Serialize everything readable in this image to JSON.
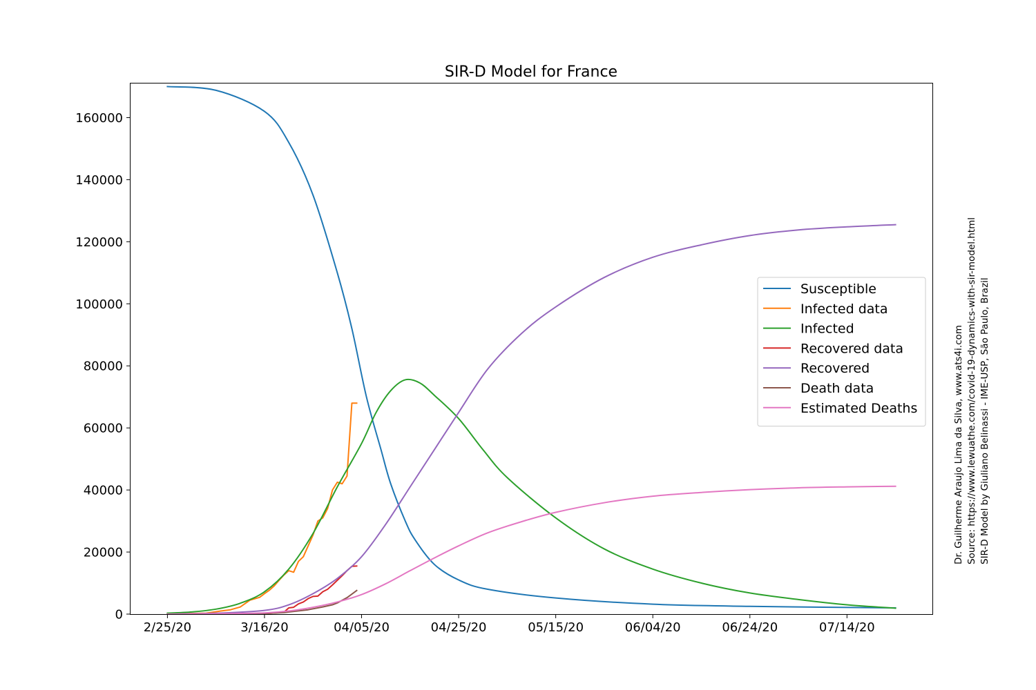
{
  "chart_data": {
    "type": "line",
    "title": "SIR-D Model for France",
    "xlabel": "",
    "ylabel": "",
    "x_start_date": "2020-02-25",
    "x_end_date": "2020-07-24",
    "ylim": [
      0,
      171000
    ],
    "y_ticks": [
      0,
      20000,
      40000,
      60000,
      80000,
      100000,
      120000,
      140000,
      160000
    ],
    "y_tick_labels": [
      "0",
      "20000",
      "40000",
      "60000",
      "80000",
      "100000",
      "120000",
      "140000",
      "160000"
    ],
    "x_tick_labels": [
      "2/25/20",
      "3/16/20",
      "04/05/20",
      "04/25/20",
      "05/15/20",
      "06/04/20",
      "06/24/20",
      "07/14/20"
    ],
    "legend_position": "center-right",
    "grid": false,
    "series": [
      {
        "name": "Susceptible",
        "color": "#1f77b4",
        "x": [
          "2020-02-25",
          "2020-03-06",
          "2020-03-16",
          "2020-03-21",
          "2020-03-26",
          "2020-03-31",
          "2020-04-03",
          "2020-04-06",
          "2020-04-09",
          "2020-04-11",
          "2020-04-14",
          "2020-04-16",
          "2020-04-20",
          "2020-04-25",
          "2020-05-01",
          "2020-05-15",
          "2020-06-04",
          "2020-06-24",
          "2020-07-24"
        ],
        "y": [
          170000,
          168800,
          162000,
          152000,
          135000,
          110000,
          92000,
          70000,
          53000,
          42000,
          30000,
          24000,
          16000,
          11000,
          8000,
          5200,
          3200,
          2500,
          2000
        ]
      },
      {
        "name": "Infected data",
        "color": "#ff7f0e",
        "x": [
          "2020-02-25",
          "2020-03-04",
          "2020-03-07",
          "2020-03-09",
          "2020-03-11",
          "2020-03-13",
          "2020-03-15",
          "2020-03-16",
          "2020-03-17",
          "2020-03-18",
          "2020-03-19",
          "2020-03-20",
          "2020-03-21",
          "2020-03-22",
          "2020-03-23",
          "2020-03-24",
          "2020-03-25",
          "2020-03-26",
          "2020-03-27",
          "2020-03-28",
          "2020-03-29",
          "2020-03-30",
          "2020-03-31",
          "2020-04-01",
          "2020-04-02",
          "2020-04-03",
          "2020-04-04"
        ],
        "y": [
          12,
          300,
          1000,
          1400,
          2300,
          4500,
          5400,
          6600,
          7700,
          9100,
          10900,
          12600,
          14000,
          13500,
          17000,
          18500,
          22000,
          25500,
          30000,
          31000,
          34000,
          40000,
          42500,
          42000,
          44500,
          68000,
          68000
        ]
      },
      {
        "name": "Infected",
        "color": "#2ca02c",
        "x": [
          "2020-02-25",
          "2020-03-01",
          "2020-03-06",
          "2020-03-11",
          "2020-03-16",
          "2020-03-21",
          "2020-03-26",
          "2020-03-31",
          "2020-04-05",
          "2020-04-08",
          "2020-04-11",
          "2020-04-14",
          "2020-04-17",
          "2020-04-20",
          "2020-04-25",
          "2020-04-30",
          "2020-05-05",
          "2020-05-15",
          "2020-05-25",
          "2020-06-04",
          "2020-06-14",
          "2020-06-24",
          "2020-07-04",
          "2020-07-14",
          "2020-07-24"
        ],
        "y": [
          300,
          700,
          1600,
          3500,
          7200,
          14500,
          26000,
          41000,
          55000,
          65000,
          72000,
          75500,
          74500,
          70500,
          63000,
          53000,
          44000,
          31000,
          21000,
          14500,
          10000,
          6800,
          4700,
          3000,
          1900
        ]
      },
      {
        "name": "Recovered data",
        "color": "#d62728",
        "x": [
          "2020-02-25",
          "2020-03-15",
          "2020-03-20",
          "2020-03-21",
          "2020-03-22",
          "2020-03-23",
          "2020-03-24",
          "2020-03-25",
          "2020-03-26",
          "2020-03-27",
          "2020-03-28",
          "2020-03-29",
          "2020-03-30",
          "2020-03-31",
          "2020-04-01",
          "2020-04-02",
          "2020-04-03",
          "2020-04-04"
        ],
        "y": [
          0,
          12,
          600,
          2000,
          2200,
          3300,
          3900,
          5000,
          5700,
          5800,
          7200,
          8000,
          9400,
          10900,
          12400,
          14000,
          15400,
          15500
        ]
      },
      {
        "name": "Recovered",
        "color": "#9467bd",
        "x": [
          "2020-02-25",
          "2020-03-06",
          "2020-03-16",
          "2020-03-21",
          "2020-03-26",
          "2020-03-31",
          "2020-04-05",
          "2020-04-10",
          "2020-04-15",
          "2020-04-20",
          "2020-04-25",
          "2020-05-01",
          "2020-05-08",
          "2020-05-15",
          "2020-05-25",
          "2020-06-04",
          "2020-06-14",
          "2020-06-24",
          "2020-07-04",
          "2020-07-14",
          "2020-07-24"
        ],
        "y": [
          0,
          300,
          1200,
          3000,
          6600,
          11500,
          18500,
          29000,
          41000,
          53000,
          65000,
          79000,
          90500,
          99000,
          108500,
          115000,
          119000,
          122000,
          123800,
          124800,
          125500
        ]
      },
      {
        "name": "Death data",
        "color": "#8c564b",
        "x": [
          "2020-02-25",
          "2020-03-15",
          "2020-03-20",
          "2020-03-25",
          "2020-03-28",
          "2020-03-30",
          "2020-03-31",
          "2020-04-02",
          "2020-04-04"
        ],
        "y": [
          0,
          100,
          500,
          1400,
          2300,
          3000,
          3600,
          5300,
          7600
        ]
      },
      {
        "name": "Estimated Deaths",
        "color": "#e377c2",
        "x": [
          "2020-02-25",
          "2020-03-06",
          "2020-03-16",
          "2020-03-21",
          "2020-03-26",
          "2020-03-31",
          "2020-04-05",
          "2020-04-10",
          "2020-04-15",
          "2020-04-20",
          "2020-04-25",
          "2020-05-01",
          "2020-05-08",
          "2020-05-15",
          "2020-05-25",
          "2020-06-04",
          "2020-06-14",
          "2020-06-24",
          "2020-07-04",
          "2020-07-14",
          "2020-07-24"
        ],
        "y": [
          0,
          100,
          400,
          1000,
          2200,
          3900,
          6300,
          9800,
          14000,
          18100,
          22000,
          26200,
          29800,
          32800,
          35900,
          38000,
          39200,
          40100,
          40700,
          41000,
          41200
        ]
      }
    ]
  },
  "credits": {
    "line1": "Dr. Guilherme Araujo Lima da Silva, www.ats4i.com",
    "line2": "Source: https://www.lewuathe.com/covid-19-dynamics-with-sir-model.html",
    "line3": "SIR-D Model by Giuliano Belinassi - IME-USP, São Paulo, Brazil"
  }
}
